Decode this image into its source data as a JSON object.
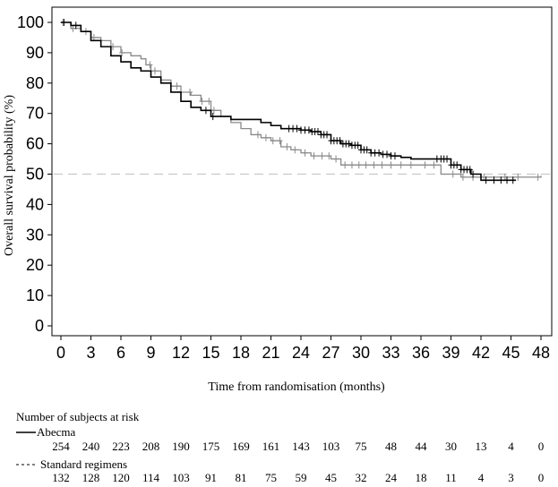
{
  "chart_data": {
    "type": "line",
    "title": "",
    "xlabel": "Time from randomisation (months)",
    "ylabel": "Overall survival probability (%)",
    "xlim": [
      0,
      48
    ],
    "ylim": [
      0,
      100
    ],
    "xticks": [
      0,
      3,
      6,
      9,
      12,
      15,
      18,
      21,
      24,
      27,
      30,
      33,
      36,
      39,
      42,
      45,
      48
    ],
    "yticks": [
      0,
      10,
      20,
      30,
      40,
      50,
      60,
      70,
      80,
      90,
      100
    ],
    "reference_line": {
      "y": 50,
      "style": "dashed",
      "color": "#c8c8c8"
    },
    "colors": {
      "abecma": "#000000",
      "standard": "#8a8a8a"
    },
    "series": [
      {
        "name": "Abecma",
        "points": [
          [
            0,
            100
          ],
          [
            1,
            99
          ],
          [
            2,
            97
          ],
          [
            3,
            94
          ],
          [
            4,
            92
          ],
          [
            5,
            89
          ],
          [
            6,
            87
          ],
          [
            7,
            85
          ],
          [
            8,
            84
          ],
          [
            9,
            82
          ],
          [
            10,
            80
          ],
          [
            11,
            77
          ],
          [
            12,
            74
          ],
          [
            13,
            72
          ],
          [
            14,
            71
          ],
          [
            15,
            69
          ],
          [
            16,
            69
          ],
          [
            17,
            68
          ],
          [
            18,
            68
          ],
          [
            19,
            68
          ],
          [
            20,
            67
          ],
          [
            21,
            66
          ],
          [
            22,
            65
          ],
          [
            23,
            65
          ],
          [
            24,
            64.5
          ],
          [
            25,
            64
          ],
          [
            26,
            63
          ],
          [
            27,
            61
          ],
          [
            28,
            60
          ],
          [
            29,
            59.5
          ],
          [
            30,
            58
          ],
          [
            31,
            57
          ],
          [
            32,
            56.5
          ],
          [
            33,
            56
          ],
          [
            34,
            55.5
          ],
          [
            35,
            55
          ],
          [
            36,
            55
          ],
          [
            37,
            55
          ],
          [
            38,
            55
          ],
          [
            39,
            53
          ],
          [
            40,
            51.5
          ],
          [
            41,
            50
          ],
          [
            42,
            48
          ],
          [
            43,
            48
          ],
          [
            44,
            48
          ],
          [
            45,
            48
          ],
          [
            45.5,
            48
          ]
        ],
        "censor_x": [
          0.3,
          1.5,
          14.5,
          15.2,
          22.8,
          23.2,
          23.6,
          24,
          24.4,
          24.8,
          25.1,
          25.4,
          25.7,
          26,
          26.3,
          26.6,
          27,
          27.3,
          27.6,
          27.9,
          28.2,
          28.5,
          28.8,
          29.1,
          29.4,
          29.7,
          30,
          30.3,
          30.6,
          31,
          31.4,
          31.8,
          32.2,
          32.6,
          33,
          33.4,
          37.6,
          38,
          38.3,
          38.6,
          39,
          39.3,
          39.6,
          40,
          40.3,
          40.6,
          40.9,
          41.2,
          42.5,
          43.3,
          44,
          44.6,
          45.2
        ]
      },
      {
        "name": "Standard regimens",
        "points": [
          [
            0,
            100
          ],
          [
            1,
            98
          ],
          [
            2,
            97
          ],
          [
            3,
            95
          ],
          [
            4,
            94
          ],
          [
            5,
            92
          ],
          [
            6,
            90
          ],
          [
            7,
            89
          ],
          [
            8,
            88
          ],
          [
            8.5,
            86
          ],
          [
            9,
            84
          ],
          [
            10,
            81
          ],
          [
            11,
            79
          ],
          [
            12,
            77
          ],
          [
            13,
            76
          ],
          [
            14,
            74
          ],
          [
            15,
            71
          ],
          [
            16,
            69
          ],
          [
            17,
            67
          ],
          [
            18,
            65
          ],
          [
            19,
            63
          ],
          [
            20,
            62
          ],
          [
            21,
            61
          ],
          [
            22,
            59
          ],
          [
            23,
            58
          ],
          [
            24,
            57
          ],
          [
            25,
            56
          ],
          [
            26,
            56
          ],
          [
            27,
            55
          ],
          [
            28,
            53
          ],
          [
            29,
            53
          ],
          [
            30,
            53
          ],
          [
            31,
            53
          ],
          [
            32,
            53
          ],
          [
            33,
            53
          ],
          [
            34,
            53
          ],
          [
            35,
            53
          ],
          [
            36,
            53
          ],
          [
            37,
            53
          ],
          [
            38,
            50
          ],
          [
            39,
            50
          ],
          [
            40,
            49
          ],
          [
            41,
            49
          ],
          [
            42,
            49
          ],
          [
            43,
            49
          ],
          [
            44,
            49
          ],
          [
            45,
            49
          ],
          [
            46,
            49
          ],
          [
            47,
            49
          ],
          [
            48,
            49.5
          ]
        ],
        "censor_x": [
          0.2,
          1.2,
          2.5,
          3.3,
          5.2,
          6.1,
          8.9,
          9.4,
          11.6,
          12.9,
          14.1,
          14.8,
          15.3,
          19.7,
          20.5,
          21.2,
          21.9,
          22.6,
          23.4,
          24.4,
          25.3,
          26.1,
          26.8,
          27.5,
          28.4,
          29.1,
          29.8,
          30.5,
          31.3,
          32.1,
          33,
          34,
          35,
          36.4,
          37.3,
          39.2,
          40.2,
          41.2,
          42.3,
          44.4,
          45.7,
          47.7
        ]
      }
    ]
  },
  "risk_table": {
    "title": "Number of subjects at risk",
    "rows": [
      {
        "name": "Abecma",
        "line_style": "solid",
        "counts": [
          "254",
          "240",
          "223",
          "208",
          "190",
          "175",
          "169",
          "161",
          "143",
          "103",
          "75",
          "48",
          "44",
          "30",
          "13",
          "4",
          "0"
        ]
      },
      {
        "name": "Standard regimens",
        "line_style": "dashed",
        "counts": [
          "132",
          "128",
          "120",
          "114",
          "103",
          "91",
          "81",
          "75",
          "59",
          "45",
          "32",
          "24",
          "18",
          "11",
          "4",
          "3",
          "0"
        ]
      }
    ]
  }
}
